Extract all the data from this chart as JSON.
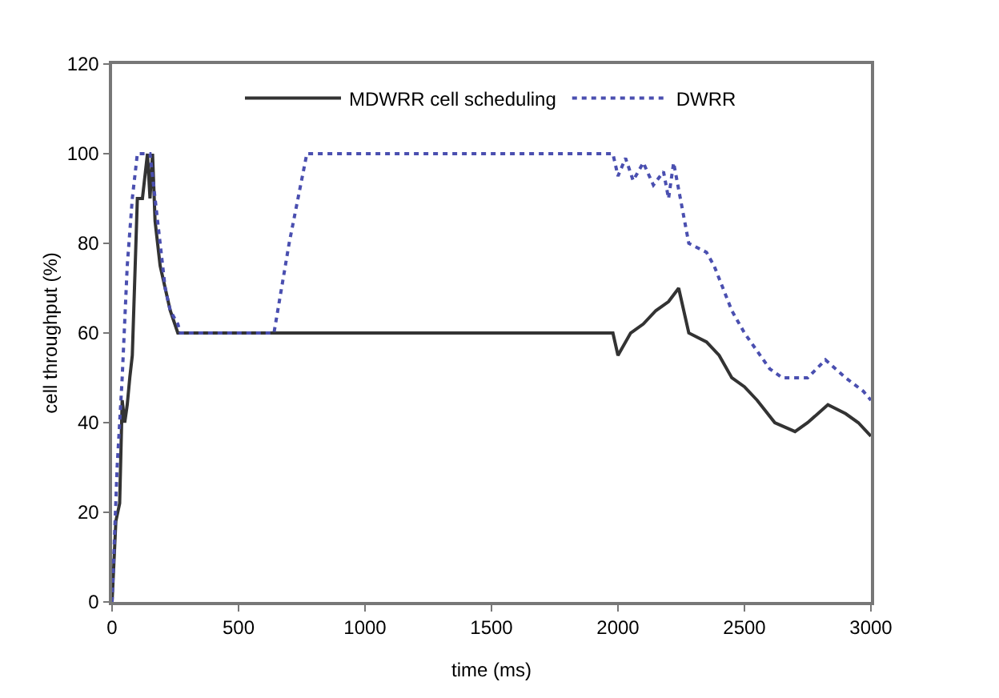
{
  "chart_data": {
    "type": "line",
    "xlabel": "time (ms)",
    "ylabel": "cell throughput (%)",
    "xlim": [
      0,
      3000
    ],
    "xticks": [
      0,
      500,
      1000,
      1500,
      2000,
      2500,
      3000
    ],
    "ylim": [
      0,
      120
    ],
    "yticks": [
      0,
      20,
      40,
      60,
      80,
      100,
      120
    ],
    "grid": false,
    "legend": "top",
    "marker": "none",
    "series": [
      {
        "name": "MDWRR cell scheduling",
        "color": "#333333",
        "line_style": "solid",
        "x": [
          0,
          15,
          30,
          40,
          50,
          60,
          70,
          80,
          100,
          120,
          140,
          150,
          160,
          170,
          180,
          190,
          210,
          230,
          260,
          1980,
          2000,
          2050,
          2100,
          2150,
          2200,
          2240,
          2280,
          2350,
          2400,
          2450,
          2500,
          2550,
          2620,
          2700,
          2750,
          2830,
          2900,
          2950,
          3000
        ],
        "values": [
          0,
          18,
          22,
          45,
          40,
          44,
          50,
          55,
          90,
          90,
          100,
          90,
          100,
          85,
          80,
          75,
          70,
          65,
          60,
          60,
          55,
          60,
          62,
          65,
          67,
          70,
          60,
          58,
          55,
          50,
          48,
          45,
          40,
          38,
          40,
          44,
          42,
          40,
          37
        ]
      },
      {
        "name": "DWRR",
        "color": "#4a4fb0",
        "line_style": "dotted",
        "x": [
          0,
          20,
          40,
          60,
          80,
          100,
          150,
          170,
          190,
          210,
          230,
          260,
          270,
          640,
          700,
          770,
          1980,
          2000,
          2030,
          2060,
          2100,
          2140,
          2180,
          2200,
          2220,
          2240,
          2280,
          2350,
          2380,
          2450,
          2500,
          2600,
          2650,
          2750,
          2820,
          2900,
          2970,
          3000
        ],
        "values": [
          0,
          30,
          50,
          75,
          90,
          100,
          100,
          90,
          80,
          70,
          65,
          62,
          60,
          60,
          80,
          100,
          100,
          95,
          99,
          94,
          98,
          93,
          96,
          90,
          98,
          92,
          80,
          78,
          75,
          65,
          60,
          52,
          50,
          50,
          54,
          50,
          47,
          45
        ]
      }
    ]
  }
}
